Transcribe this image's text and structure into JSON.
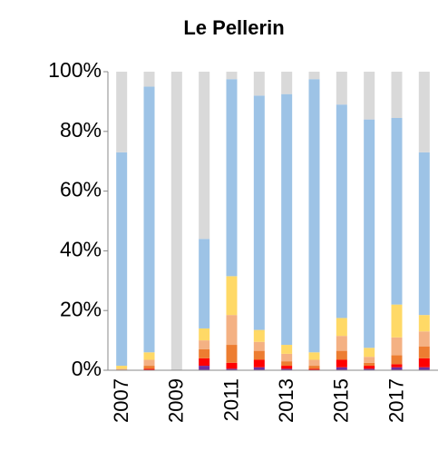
{
  "chart_data": {
    "type": "bar",
    "stacked": true,
    "title": "Le Pellerin",
    "categories": [
      "2007",
      null,
      "2009",
      null,
      "2011",
      null,
      "2013",
      null,
      "2015",
      null,
      "2017",
      null
    ],
    "series": [
      {
        "color": "#7030a0",
        "values": [
          0,
          0,
          0,
          1.5,
          0.5,
          1,
          0.5,
          0,
          1,
          0.5,
          1,
          1
        ]
      },
      {
        "color": "#ff0000",
        "values": [
          0,
          0.5,
          0,
          2.5,
          2,
          2.5,
          1,
          0.5,
          2.5,
          1,
          1,
          3
        ]
      },
      {
        "color": "#ed7d31",
        "values": [
          0,
          1,
          0,
          3,
          6,
          3,
          1.5,
          1,
          3,
          1,
          3,
          4
        ]
      },
      {
        "color": "#f4b183",
        "values": [
          0.5,
          2,
          0,
          3,
          10,
          3,
          2.5,
          2,
          5,
          2,
          6,
          5
        ]
      },
      {
        "color": "#ffd966",
        "values": [
          1,
          2.5,
          0,
          4,
          13,
          4,
          3,
          2.5,
          6,
          3,
          11,
          5.5
        ]
      },
      {
        "color": "#9dc3e6",
        "values": [
          71.5,
          89,
          0,
          30,
          66,
          78.5,
          84,
          91.5,
          71.5,
          76.5,
          62.5,
          54.5
        ]
      },
      {
        "color": "#d9d9d9",
        "values": [
          27,
          5,
          100,
          56,
          2.5,
          8,
          7.5,
          2.5,
          11,
          16,
          15.5,
          27
        ]
      }
    ],
    "ylim": [
      0,
      100
    ],
    "yticks": [
      {
        "value": 0,
        "label": "0%"
      },
      {
        "value": 20,
        "label": "20%"
      },
      {
        "value": 40,
        "label": "40%"
      },
      {
        "value": 60,
        "label": "60%"
      },
      {
        "value": 80,
        "label": "80%"
      },
      {
        "value": 100,
        "label": "100%"
      }
    ]
  }
}
